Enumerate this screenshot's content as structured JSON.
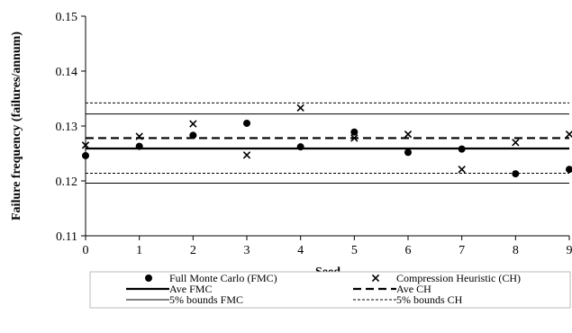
{
  "chart_data": {
    "type": "scatter",
    "xlabel": "Seed",
    "ylabel": "Failure frequency (failures/annum)",
    "xlim": [
      0,
      9
    ],
    "ylim": [
      0.11,
      0.15
    ],
    "x_ticks": [
      "0",
      "1",
      "2",
      "3",
      "4",
      "5",
      "6",
      "7",
      "8",
      "9"
    ],
    "y_ticks": [
      "0.11",
      "0.12",
      "0.13",
      "0.14",
      "0.15"
    ],
    "y_tick_values": [
      0.11,
      0.12,
      0.13,
      0.14,
      0.15
    ],
    "grid": false,
    "legend_position": "bottom",
    "series": [
      {
        "name": "Full Monte Carlo (FMC)",
        "marker": "circle",
        "x": [
          0,
          1,
          2,
          3,
          4,
          5,
          6,
          7,
          8,
          9
        ],
        "y": [
          0.1246,
          0.1263,
          0.1283,
          0.1305,
          0.1262,
          0.1289,
          0.1252,
          0.1258,
          0.1213,
          0.1221
        ]
      },
      {
        "name": "Compression Heuristic (CH)",
        "marker": "x",
        "x": [
          0,
          1,
          2,
          3,
          4,
          5,
          6,
          7,
          8,
          9
        ],
        "y": [
          0.1265,
          0.1281,
          0.1304,
          0.1247,
          0.1333,
          0.1278,
          0.1285,
          0.1221,
          0.127,
          0.1285
        ]
      }
    ],
    "lines": [
      {
        "name": "Ave FMC",
        "y": 0.1259,
        "style": "solid-thick"
      },
      {
        "name": "Ave CH",
        "y": 0.1278,
        "style": "dashed-thick"
      },
      {
        "name": "5% bounds FMC",
        "y_values": [
          0.1196,
          0.1322
        ],
        "style": "solid-thin"
      },
      {
        "name": "5% bounds CH",
        "y_values": [
          0.1214,
          0.1342
        ],
        "style": "dotted-thin"
      }
    ]
  }
}
